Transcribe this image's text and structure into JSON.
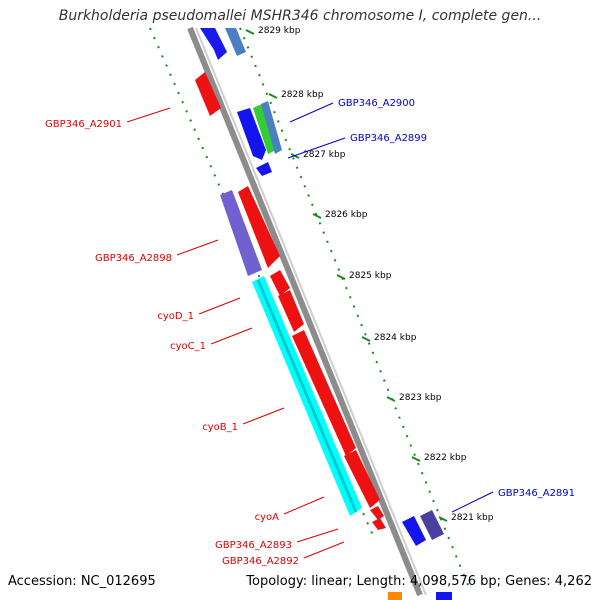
{
  "title": "Burkholderia pseudomallei MSHR346 chromosome I, complete gen...",
  "footer": {
    "accession": "Accession: NC_012695",
    "topology": "Topology: linear; Length: 4,098,576 bp; Genes: 4,262"
  },
  "colors": {
    "backbone": "#8c8c8c",
    "ruler": "#1a8a1a",
    "label_red": "#dd0000",
    "label_blue": "#0000cc"
  },
  "ticks": [
    {
      "label": "2829 kbp"
    },
    {
      "label": "2828 kbp"
    },
    {
      "label": "2827 kbp"
    },
    {
      "label": "2826 kbp"
    },
    {
      "label": "2825 kbp"
    },
    {
      "label": "2824 kbp"
    },
    {
      "label": "2823 kbp"
    },
    {
      "label": "2822 kbp"
    },
    {
      "label": "2821 kbp"
    }
  ],
  "gene_labels": [
    {
      "text": "GBP346_A2901",
      "color": "red"
    },
    {
      "text": "GBP346_A2900",
      "color": "blue"
    },
    {
      "text": "GBP346_A2899",
      "color": "blue"
    },
    {
      "text": "GBP346_A2898",
      "color": "red"
    },
    {
      "text": "cyoD_1",
      "color": "red"
    },
    {
      "text": "cyoC_1",
      "color": "red"
    },
    {
      "text": "cyoB_1",
      "color": "red"
    },
    {
      "text": "cyoA",
      "color": "red"
    },
    {
      "text": "GBP346_A2893",
      "color": "red"
    },
    {
      "text": "GBP346_A2892",
      "color": "red"
    },
    {
      "text": "GBP346_A2891",
      "color": "blue"
    }
  ]
}
